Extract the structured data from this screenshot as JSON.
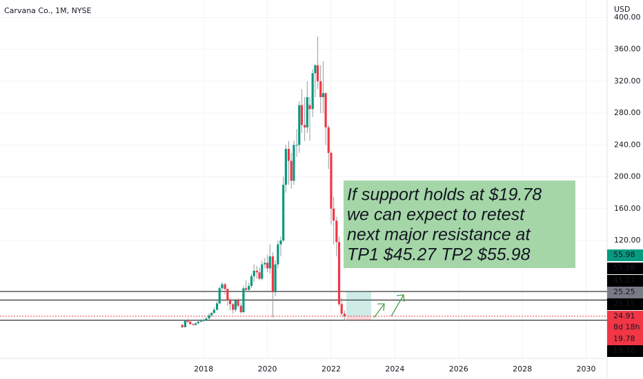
{
  "chart_data": {
    "type": "candlestick",
    "title": "Carvana Co., 1M, NYSE",
    "currency": "USD",
    "x": [
      2017.33,
      2017.42,
      2017.5,
      2017.58,
      2017.67,
      2017.75,
      2017.83,
      2017.92,
      2018.0,
      2018.08,
      2018.17,
      2018.25,
      2018.33,
      2018.42,
      2018.5,
      2018.58,
      2018.67,
      2018.75,
      2018.83,
      2018.92,
      2019.0,
      2019.08,
      2019.17,
      2019.25,
      2019.33,
      2019.42,
      2019.5,
      2019.58,
      2019.67,
      2019.75,
      2019.83,
      2019.92,
      2020.0,
      2020.08,
      2020.17,
      2020.25,
      2020.33,
      2020.42,
      2020.5,
      2020.58,
      2020.67,
      2020.75,
      2020.83,
      2020.92,
      2021.0,
      2021.08,
      2021.17,
      2021.25,
      2021.33,
      2021.42,
      2021.5,
      2021.58,
      2021.67,
      2021.75,
      2021.83,
      2021.92,
      2022.0,
      2022.08,
      2022.17,
      2022.25,
      2022.33,
      2022.42
    ],
    "open": [
      14,
      11,
      20,
      18,
      15,
      14,
      16,
      18,
      19,
      20,
      22,
      26,
      29,
      33,
      41,
      60,
      65,
      59,
      45,
      40,
      33,
      45,
      38,
      30,
      60,
      58,
      63,
      75,
      82,
      80,
      72,
      90,
      92,
      85,
      100,
      55,
      90,
      115,
      120,
      190,
      235,
      220,
      195,
      240,
      240,
      290,
      265,
      262,
      290,
      285,
      330,
      340,
      320,
      300,
      305,
      262,
      230,
      160,
      145,
      118,
      40,
      28
    ],
    "high": [
      15,
      21,
      22,
      19,
      16,
      17,
      19,
      21,
      22,
      24,
      29,
      30,
      36,
      44,
      62,
      68,
      67,
      60,
      48,
      42,
      47,
      48,
      42,
      63,
      70,
      67,
      78,
      90,
      88,
      86,
      95,
      98,
      102,
      115,
      105,
      95,
      120,
      125,
      200,
      240,
      245,
      230,
      245,
      260,
      295,
      310,
      300,
      320,
      300,
      335,
      342,
      376,
      340,
      345,
      306,
      265,
      232,
      175,
      150,
      125,
      48,
      32
    ],
    "low": [
      10,
      11,
      16,
      14,
      13,
      13,
      15,
      17,
      18,
      19,
      21,
      24,
      28,
      32,
      40,
      55,
      52,
      38,
      32,
      28,
      30,
      35,
      28,
      29,
      55,
      55,
      60,
      68,
      72,
      70,
      70,
      85,
      80,
      78,
      23,
      50,
      85,
      100,
      118,
      180,
      190,
      185,
      190,
      225,
      230,
      255,
      245,
      255,
      245,
      275,
      300,
      310,
      280,
      280,
      240,
      210,
      140,
      115,
      100,
      38,
      25,
      19
    ],
    "close": [
      11,
      20,
      18,
      15,
      14,
      16,
      18,
      19,
      20,
      22,
      26,
      29,
      33,
      41,
      60,
      65,
      59,
      45,
      40,
      33,
      45,
      38,
      30,
      60,
      58,
      63,
      75,
      82,
      80,
      72,
      90,
      92,
      85,
      100,
      55,
      90,
      115,
      120,
      190,
      235,
      220,
      195,
      240,
      240,
      290,
      265,
      262,
      300,
      285,
      330,
      340,
      320,
      300,
      305,
      262,
      230,
      160,
      145,
      118,
      40,
      28,
      25
    ],
    "up_color": "#089981",
    "down_color": "#f23645",
    "xlim": [
      2011.61,
      2030.66
    ],
    "xticks": [
      2018,
      2020,
      2022,
      2024,
      2026,
      2028,
      2030
    ],
    "ylim": [
      -28,
      422
    ],
    "yticks": [
      {
        "value": 120,
        "label": "120.00"
      },
      {
        "value": 160,
        "label": "160.00"
      },
      {
        "value": 200,
        "label": "200.00"
      },
      {
        "value": 240,
        "label": "240.00"
      },
      {
        "value": 280,
        "label": "280.00"
      },
      {
        "value": 320,
        "label": "320.00"
      },
      {
        "value": 360,
        "label": "360.00"
      },
      {
        "value": 400,
        "label": "400.00"
      }
    ],
    "grid": true,
    "price_labels": [
      {
        "value": 55.98,
        "color": "#089981"
      },
      {
        "value": 55.98,
        "color": "#000000",
        "line": "solid"
      },
      {
        "value": 45.27,
        "color": "#000000",
        "line": "solid"
      },
      {
        "value": 25.25,
        "color": "#787b86"
      },
      {
        "value": 25.15,
        "color": "#000000"
      },
      {
        "value": 24.91,
        "color": "#f23645",
        "line": "dotted",
        "countdown": "8d 18h"
      },
      {
        "value": 19.78,
        "color": "#f23645"
      },
      {
        "value": 19.78,
        "color": "#000000",
        "line": "solid"
      }
    ],
    "annotation": [
      "If support holds at $19.78",
      "we can expect to retest",
      "next major resistance at",
      "TP1 $45.27  TP2 $55.98"
    ]
  }
}
